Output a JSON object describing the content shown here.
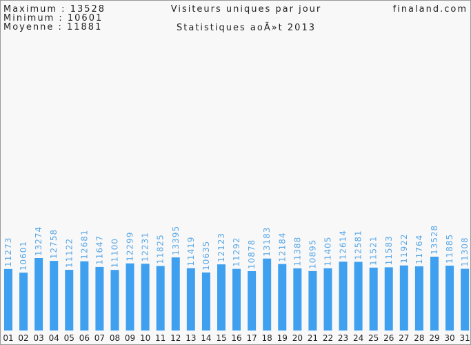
{
  "chart_data": {
    "type": "bar",
    "title": "Visiteurs uniques par jour",
    "subtitle": "Statistiques aoÃ»t 2013",
    "site": "finaland.com",
    "stats": [
      "Maximum : 13528",
      "Minimum : 10601",
      "Moyenne : 11881"
    ],
    "categories": [
      "01",
      "02",
      "03",
      "04",
      "05",
      "06",
      "07",
      "08",
      "09",
      "10",
      "11",
      "12",
      "13",
      "14",
      "15",
      "16",
      "17",
      "18",
      "19",
      "20",
      "21",
      "22",
      "23",
      "24",
      "25",
      "26",
      "27",
      "28",
      "29",
      "30",
      "31"
    ],
    "values": [
      11273,
      10601,
      13274,
      12758,
      11122,
      12681,
      11647,
      11100,
      12299,
      12231,
      11825,
      13395,
      11419,
      10635,
      12123,
      11292,
      10878,
      13183,
      12184,
      11388,
      10895,
      11405,
      12614,
      12581,
      11521,
      11583,
      11922,
      11764,
      13528,
      11885,
      11308
    ],
    "color": "#3fa0f0",
    "label_color": "#5aa8e6"
  }
}
